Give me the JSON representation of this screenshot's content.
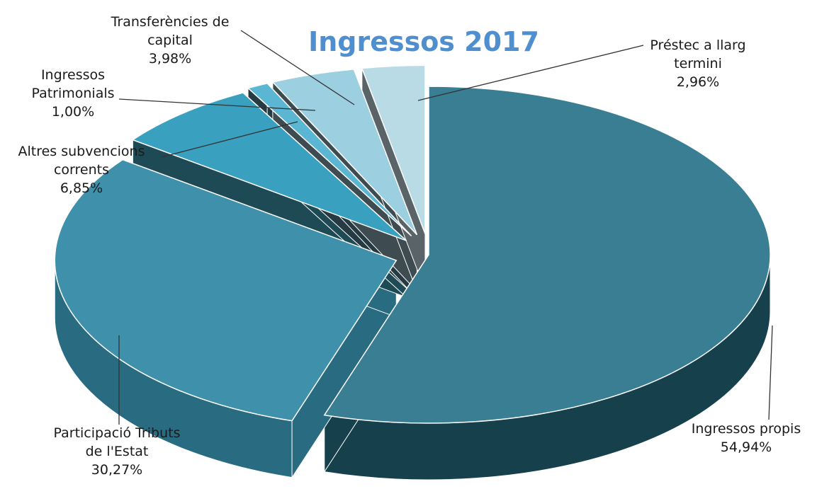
{
  "chart_data": {
    "type": "pie",
    "title": "Ingressos 2017",
    "legend": "none",
    "slices": [
      {
        "label": [
          "Ingressos propis"
        ],
        "value": 54.94,
        "value_label": "54,94%",
        "top_color": "#3a7e93",
        "side_color": "#16404c"
      },
      {
        "label": [
          "Participació Tributs",
          "de l'Estat"
        ],
        "value": 30.27,
        "value_label": "30,27%",
        "top_color": "#3f90ab",
        "side_color": "#296b80"
      },
      {
        "label": [
          "Altres subvencions",
          "corrents"
        ],
        "value": 6.85,
        "value_label": "6,85%",
        "top_color": "#3aa0bf",
        "side_color": "#1e4a56"
      },
      {
        "label": [
          "Ingressos",
          "Patrimonials"
        ],
        "value": 1.0,
        "value_label": "1,00%",
        "top_color": "#5ab6d2",
        "side_color": "#253a42"
      },
      {
        "label": [
          "Transferències de",
          "capital"
        ],
        "value": 3.98,
        "value_label": "3,98%",
        "top_color": "#9ccfdf",
        "side_color": "#3e4c52"
      },
      {
        "label": [
          "Préstec a llarg",
          "termini"
        ],
        "value": 2.96,
        "value_label": "2,96%",
        "top_color": "#b9dbe6",
        "side_color": "#5a6468"
      }
    ]
  },
  "colors": {
    "title": "#4f8fcf",
    "leader_line": "#333333",
    "slice_edge": "#ffffff"
  }
}
